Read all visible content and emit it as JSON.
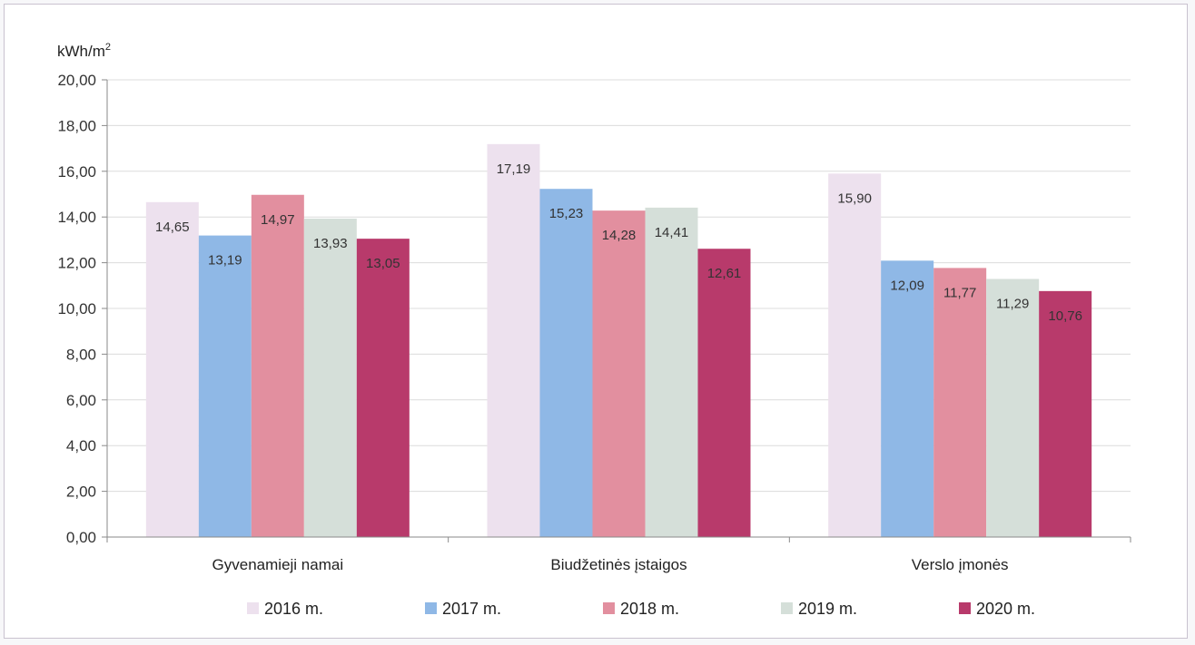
{
  "chart_data": {
    "type": "bar",
    "unit_label": "kWh/m",
    "unit_superscript": "2",
    "categories": [
      "Gyvenamieji namai",
      "Biudžetinės įstaigos",
      "Verslo įmonės"
    ],
    "series": [
      {
        "name": "2016 m.",
        "color": "#ede1ee",
        "values": [
          14.65,
          17.19,
          15.9
        ],
        "labels": [
          "14,65",
          "17,19",
          "15,90"
        ]
      },
      {
        "name": "2017 m.",
        "color": "#8fb8e6",
        "values": [
          13.19,
          15.23,
          12.09
        ],
        "labels": [
          "13,19",
          "15,23",
          "12,09"
        ]
      },
      {
        "name": "2018 m.",
        "color": "#e28f9f",
        "values": [
          14.97,
          14.28,
          11.77
        ],
        "labels": [
          "14,97",
          "14,28",
          "11,77"
        ]
      },
      {
        "name": "2019 m.",
        "color": "#d5dfd9",
        "values": [
          13.93,
          14.41,
          11.29
        ],
        "labels": [
          "13,93",
          "14,41",
          "11,29"
        ]
      },
      {
        "name": "2020 m.",
        "color": "#b83a6b",
        "values": [
          13.05,
          12.61,
          10.76
        ],
        "labels": [
          "13,05",
          "12,61",
          "10,76"
        ]
      }
    ],
    "ylim": [
      0,
      20
    ],
    "y_ticks": [
      "0,00",
      "2,00",
      "4,00",
      "6,00",
      "8,00",
      "10,00",
      "12,00",
      "14,00",
      "16,00",
      "18,00",
      "20,00"
    ],
    "grid": true,
    "legend_position": "bottom"
  }
}
